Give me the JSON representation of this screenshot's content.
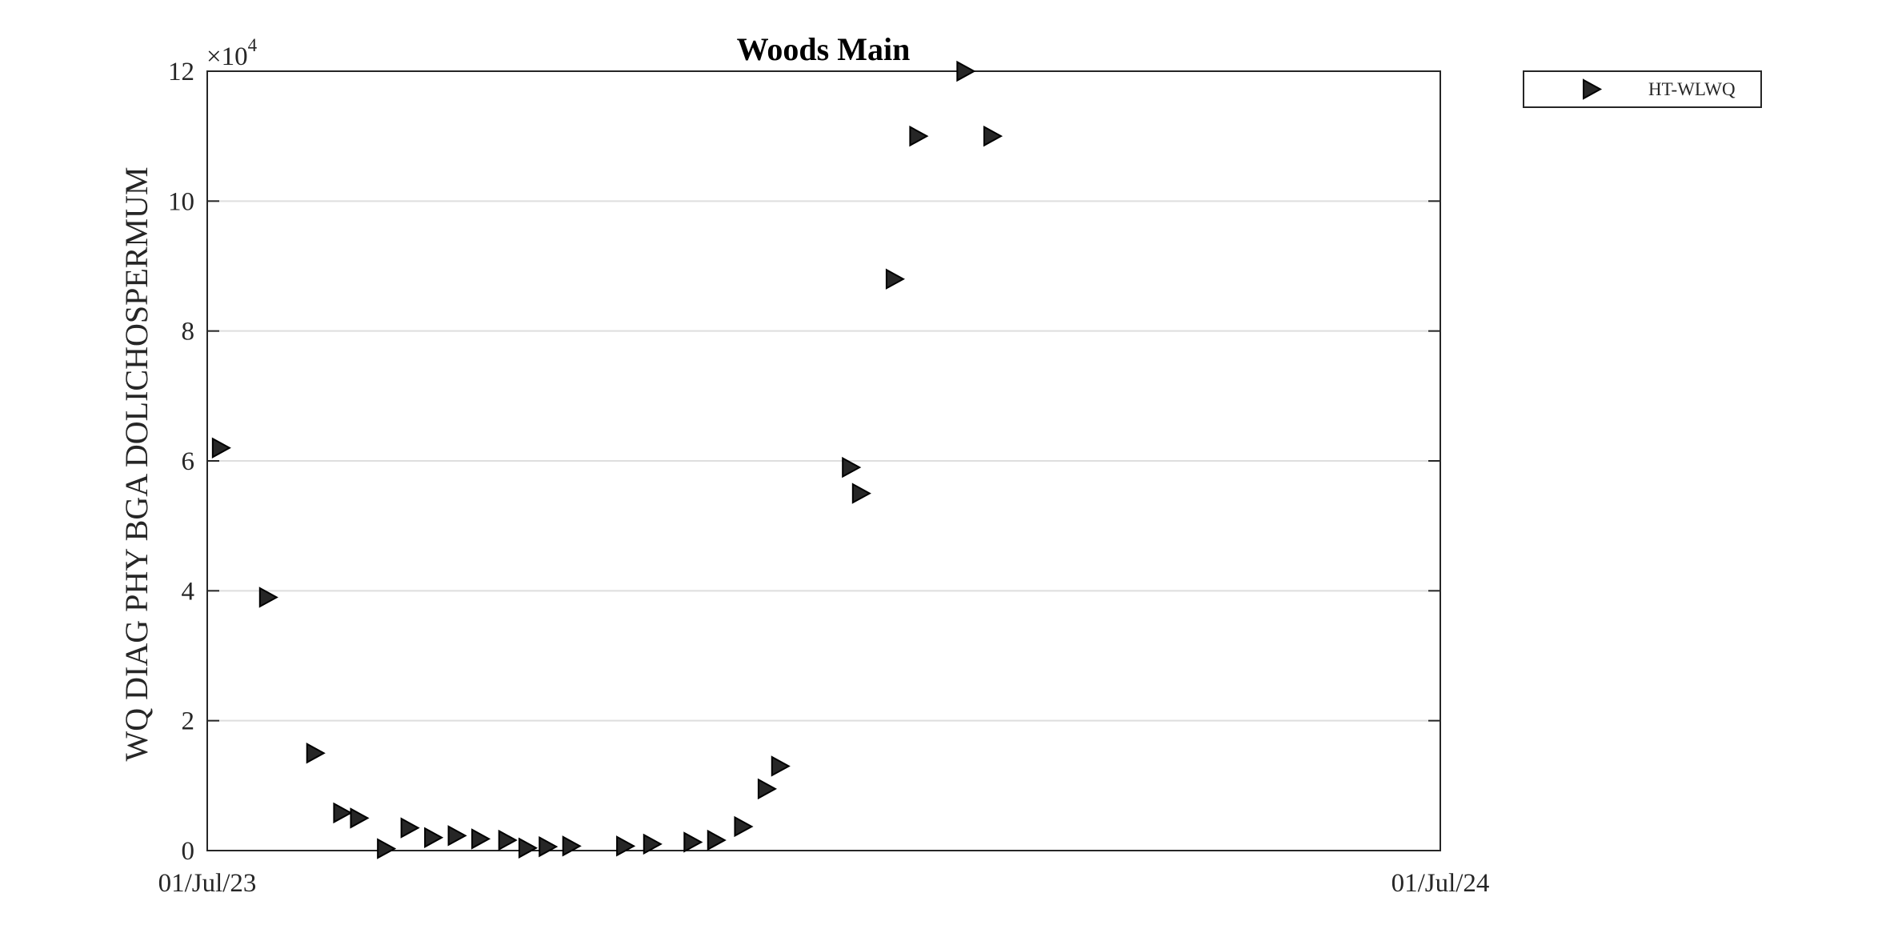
{
  "chart_data": {
    "type": "scatter",
    "title": "Woods Main",
    "xlabel": "",
    "ylabel": "WQ DIAG PHY BGA DOLICHOSPERMUM",
    "x_ticks": [
      "01/Jul/23",
      "01/Jul/24"
    ],
    "xlim": [
      "2023-07-01",
      "2024-07-01"
    ],
    "ylim": [
      0,
      120000
    ],
    "y_ticks": [
      0,
      2,
      4,
      6,
      8,
      10,
      12
    ],
    "y_exponent_label": "×10",
    "y_exponent_power": "4",
    "grid": "horizontal",
    "legend_position": "top-right outside",
    "marker": "triangle-right",
    "series": [
      {
        "name": "HT-WLWQ",
        "color": "#262626",
        "points": [
          {
            "x": "2023-07-05",
            "y": 62000
          },
          {
            "x": "2023-07-19",
            "y": 39000
          },
          {
            "x": "2023-08-02",
            "y": 15000
          },
          {
            "x": "2023-08-10",
            "y": 5800
          },
          {
            "x": "2023-08-15",
            "y": 5000
          },
          {
            "x": "2023-08-23",
            "y": 300
          },
          {
            "x": "2023-08-30",
            "y": 3500
          },
          {
            "x": "2023-09-06",
            "y": 2000
          },
          {
            "x": "2023-09-13",
            "y": 2300
          },
          {
            "x": "2023-09-20",
            "y": 1800
          },
          {
            "x": "2023-09-28",
            "y": 1600
          },
          {
            "x": "2023-10-04",
            "y": 400
          },
          {
            "x": "2023-10-10",
            "y": 600
          },
          {
            "x": "2023-10-17",
            "y": 700
          },
          {
            "x": "2023-11-02",
            "y": 700
          },
          {
            "x": "2023-11-10",
            "y": 1000
          },
          {
            "x": "2023-11-22",
            "y": 1300
          },
          {
            "x": "2023-11-29",
            "y": 1600
          },
          {
            "x": "2023-12-07",
            "y": 3700
          },
          {
            "x": "2023-12-14",
            "y": 9500
          },
          {
            "x": "2023-12-18",
            "y": 13000
          },
          {
            "x": "2024-01-08",
            "y": 59000
          },
          {
            "x": "2024-01-11",
            "y": 55000
          },
          {
            "x": "2024-01-21",
            "y": 88000
          },
          {
            "x": "2024-01-28",
            "y": 110000
          },
          {
            "x": "2024-02-11",
            "y": 120000
          },
          {
            "x": "2024-02-19",
            "y": 110000
          }
        ]
      }
    ]
  }
}
